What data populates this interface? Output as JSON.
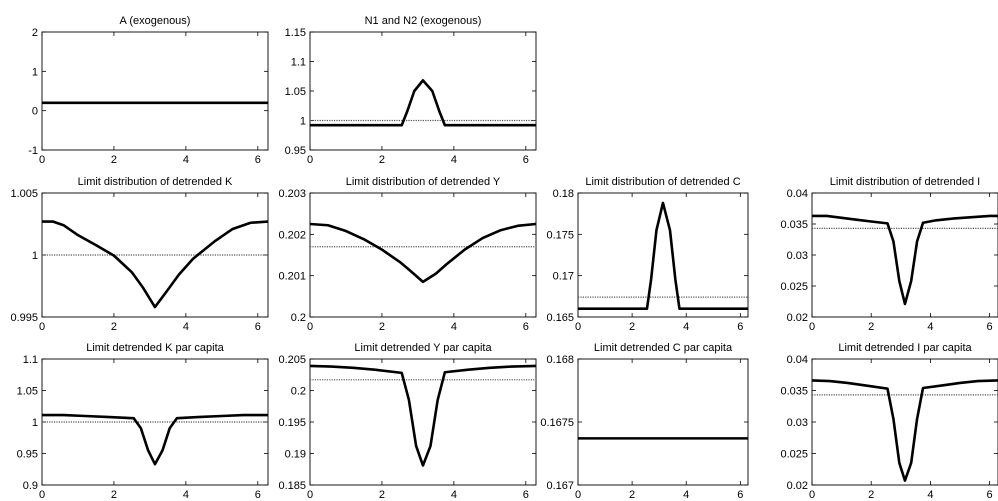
{
  "chart_data": [
    {
      "type": "line",
      "title": "A (exogenous)",
      "xlim": [
        0,
        6.2832
      ],
      "ylim": [
        -1,
        2
      ],
      "xticks": [
        "0",
        "2",
        "4",
        "6"
      ],
      "yticks": [
        "-1",
        "0",
        "1",
        "2"
      ],
      "series": [
        {
          "style": "thick",
          "x": [
            0,
            6.2832
          ],
          "y": [
            0.2,
            0.2
          ]
        }
      ]
    },
    {
      "type": "line",
      "title": "N1 and N2 (exogenous)",
      "xlim": [
        0,
        6.2832
      ],
      "ylim": [
        0.95,
        1.15
      ],
      "xticks": [
        "0",
        "2",
        "4",
        "6"
      ],
      "yticks": [
        "0.95",
        "1",
        "1.05",
        "1.1",
        "1.15"
      ],
      "series": [
        {
          "style": "dotted",
          "x": [
            0,
            6.2832
          ],
          "y": [
            1.0,
            1.0
          ]
        },
        {
          "style": "thick",
          "x": [
            0,
            2.55,
            2.7,
            2.9,
            3.14,
            3.4,
            3.6,
            3.75,
            6.2832
          ],
          "y": [
            0.992,
            0.992,
            1.015,
            1.05,
            1.068,
            1.05,
            1.015,
            0.992,
            0.992
          ]
        }
      ]
    },
    {
      "type": "line",
      "title": "Limit distribution of detrended K",
      "xlim": [
        0,
        6.2832
      ],
      "ylim": [
        0.995,
        1.005
      ],
      "xticks": [
        "0",
        "2",
        "4",
        "6"
      ],
      "yticks": [
        "0.995",
        "1",
        "1.005"
      ],
      "series": [
        {
          "style": "dotted",
          "x": [
            0,
            6.2832
          ],
          "y": [
            1.0,
            1.0
          ]
        },
        {
          "style": "thick",
          "x": [
            0,
            0.3,
            0.6,
            1.0,
            1.5,
            2.0,
            2.5,
            2.8,
            3.14,
            3.5,
            3.8,
            4.2,
            4.8,
            5.3,
            5.8,
            6.2832
          ],
          "y": [
            1.0027,
            1.0027,
            1.0024,
            1.0016,
            1.0008,
            0.99995,
            0.9986,
            0.9974,
            0.9958,
            0.9972,
            0.9984,
            0.9997,
            1.0011,
            1.0021,
            1.0026,
            1.0027
          ]
        }
      ]
    },
    {
      "type": "line",
      "title": "Limit distribution of detrended Y",
      "xlim": [
        0,
        6.2832
      ],
      "ylim": [
        0.2,
        0.203
      ],
      "xticks": [
        "0",
        "2",
        "4",
        "6"
      ],
      "yticks": [
        "0.2",
        "0.201",
        "0.202",
        "0.203"
      ],
      "series": [
        {
          "style": "dotted",
          "x": [
            0,
            6.2832
          ],
          "y": [
            0.2017,
            0.2017
          ]
        },
        {
          "style": "thick",
          "x": [
            0,
            0.5,
            1.0,
            1.5,
            2.0,
            2.5,
            2.8,
            3.14,
            3.5,
            3.8,
            4.3,
            4.8,
            5.3,
            5.8,
            6.2832
          ],
          "y": [
            0.20225,
            0.20222,
            0.20208,
            0.20188,
            0.20163,
            0.20133,
            0.20111,
            0.20085,
            0.20105,
            0.20128,
            0.20163,
            0.20191,
            0.2021,
            0.20221,
            0.20225
          ]
        }
      ]
    },
    {
      "type": "line",
      "title": "Limit distribution of detrended C",
      "xlim": [
        0,
        6.2832
      ],
      "ylim": [
        0.165,
        0.18
      ],
      "xticks": [
        "0",
        "2",
        "4",
        "6"
      ],
      "yticks": [
        "0.165",
        "0.17",
        "0.175",
        "0.18"
      ],
      "series": [
        {
          "style": "dotted",
          "x": [
            0,
            6.2832
          ],
          "y": [
            0.1674,
            0.1674
          ]
        },
        {
          "style": "thick",
          "x": [
            0,
            2.55,
            2.7,
            2.9,
            3.14,
            3.4,
            3.6,
            3.75,
            6.2832
          ],
          "y": [
            0.166,
            0.166,
            0.1695,
            0.1755,
            0.1788,
            0.1755,
            0.1695,
            0.166,
            0.166
          ]
        }
      ]
    },
    {
      "type": "line",
      "title": "Limit distribution of detrended I",
      "xlim": [
        0,
        6.2832
      ],
      "ylim": [
        0.02,
        0.04
      ],
      "xticks": [
        "0",
        "2",
        "4",
        "6"
      ],
      "yticks": [
        "0.02",
        "0.025",
        "0.03",
        "0.035",
        "0.04"
      ],
      "series": [
        {
          "style": "dotted",
          "x": [
            0,
            6.2832
          ],
          "y": [
            0.0343,
            0.0343
          ]
        },
        {
          "style": "thick",
          "x": [
            0,
            0.5,
            1.0,
            1.5,
            2.0,
            2.55,
            2.75,
            2.95,
            3.14,
            3.35,
            3.55,
            3.75,
            4.2,
            4.8,
            5.4,
            6.0,
            6.2832
          ],
          "y": [
            0.0363,
            0.0363,
            0.036,
            0.0357,
            0.0354,
            0.0351,
            0.0322,
            0.0258,
            0.0221,
            0.0258,
            0.0322,
            0.0352,
            0.0356,
            0.0359,
            0.0361,
            0.0363,
            0.0363
          ]
        }
      ]
    },
    {
      "type": "line",
      "title": "Limit detrended K par capita",
      "xlim": [
        0,
        6.2832
      ],
      "ylim": [
        0.9,
        1.1
      ],
      "xticks": [
        "0",
        "2",
        "4",
        "6"
      ],
      "yticks": [
        "0.9",
        "0.95",
        "1",
        "1.05",
        "1.1"
      ],
      "series": [
        {
          "style": "dotted",
          "x": [
            0,
            6.2832
          ],
          "y": [
            1.0,
            1.0
          ]
        },
        {
          "style": "thick",
          "x": [
            0,
            0.6,
            1.2,
            1.8,
            2.55,
            2.75,
            2.95,
            3.14,
            3.35,
            3.55,
            3.75,
            4.4,
            5.0,
            5.6,
            6.2832
          ],
          "y": [
            1.011,
            1.011,
            1.0095,
            1.008,
            1.006,
            0.99,
            0.955,
            0.933,
            0.955,
            0.99,
            1.006,
            1.008,
            1.0095,
            1.011,
            1.011
          ]
        }
      ]
    },
    {
      "type": "line",
      "title": "Limit detrended Y par capita",
      "xlim": [
        0,
        6.2832
      ],
      "ylim": [
        0.185,
        0.205
      ],
      "xticks": [
        "0",
        "2",
        "4",
        "6"
      ],
      "yticks": [
        "0.185",
        "0.19",
        "0.195",
        "0.2",
        "0.205"
      ],
      "series": [
        {
          "style": "dotted",
          "x": [
            0,
            6.2832
          ],
          "y": [
            0.2017,
            0.2017
          ]
        },
        {
          "style": "thick",
          "x": [
            0,
            0.6,
            1.2,
            1.8,
            2.55,
            2.75,
            2.95,
            3.14,
            3.35,
            3.55,
            3.75,
            4.4,
            5.0,
            5.6,
            6.2832
          ],
          "y": [
            0.2039,
            0.2038,
            0.2036,
            0.2033,
            0.2028,
            0.1985,
            0.1912,
            0.1881,
            0.1912,
            0.1985,
            0.2029,
            0.2033,
            0.2036,
            0.2038,
            0.2039
          ]
        }
      ]
    },
    {
      "type": "line",
      "title": "Limit detrended C par capita",
      "xlim": [
        0,
        6.2832
      ],
      "ylim": [
        0.167,
        0.168
      ],
      "xticks": [
        "0",
        "2",
        "4",
        "6"
      ],
      "yticks": [
        "0.167",
        "0.1675",
        "0.168"
      ],
      "series": [
        {
          "style": "thick",
          "x": [
            0,
            6.2832
          ],
          "y": [
            0.16737,
            0.16737
          ]
        }
      ]
    },
    {
      "type": "line",
      "title": "Limit detrended I par capita",
      "xlim": [
        0,
        6.2832
      ],
      "ylim": [
        0.02,
        0.04
      ],
      "xticks": [
        "0",
        "2",
        "4",
        "6"
      ],
      "yticks": [
        "0.02",
        "0.025",
        "0.03",
        "0.035",
        "0.04"
      ],
      "series": [
        {
          "style": "dotted",
          "x": [
            0,
            6.2832
          ],
          "y": [
            0.0343,
            0.0343
          ]
        },
        {
          "style": "thick",
          "x": [
            0,
            0.6,
            1.2,
            1.8,
            2.55,
            2.75,
            2.95,
            3.14,
            3.35,
            3.55,
            3.75,
            4.4,
            5.0,
            5.6,
            6.2832
          ],
          "y": [
            0.0366,
            0.0365,
            0.0362,
            0.0358,
            0.0353,
            0.0305,
            0.0235,
            0.0207,
            0.0235,
            0.0305,
            0.0354,
            0.0358,
            0.0362,
            0.0365,
            0.0366
          ]
        }
      ]
    }
  ]
}
